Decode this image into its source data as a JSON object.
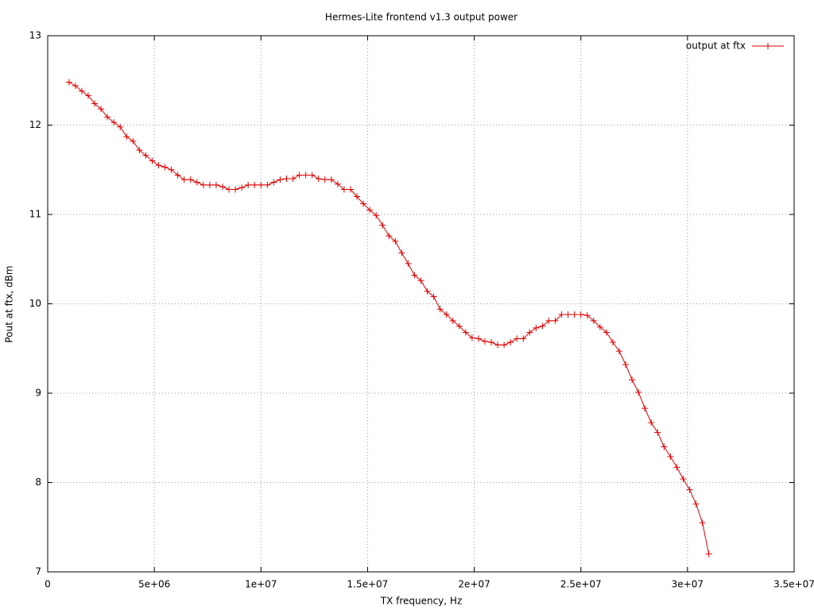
{
  "chart_data": {
    "type": "line",
    "title": "Hermes-Lite frontend v1.3 output power",
    "xlabel": "TX frequency, Hz",
    "ylabel": "Pout at ftx, dBm",
    "x": [
      1000000,
      1300000,
      1600000,
      1900000,
      2200000,
      2500000,
      2800000,
      3100000,
      3400000,
      3700000,
      4000000,
      4300000,
      4600000,
      4900000,
      5200000,
      5500000,
      5800000,
      6100000,
      6400000,
      6700000,
      7000000,
      7300000,
      7600000,
      7900000,
      8200000,
      8500000,
      8800000,
      9100000,
      9400000,
      9700000,
      10000000,
      10300000,
      10600000,
      10900000,
      11200000,
      11500000,
      11800000,
      12100000,
      12400000,
      12700000,
      13000000,
      13300000,
      13600000,
      13900000,
      14200000,
      14500000,
      14800000,
      15100000,
      15400000,
      15700000,
      16000000,
      16300000,
      16600000,
      16900000,
      17200000,
      17500000,
      17800000,
      18100000,
      18400000,
      18700000,
      19000000,
      19300000,
      19600000,
      19900000,
      20200000,
      20500000,
      20800000,
      21100000,
      21400000,
      21700000,
      22000000,
      22300000,
      22600000,
      22900000,
      23200000,
      23500000,
      23800000,
      24100000,
      24400000,
      24700000,
      25000000,
      25300000,
      25600000,
      25900000,
      26200000,
      26500000,
      26800000,
      27100000,
      27400000,
      27700000,
      28000000,
      28300000,
      28600000,
      28900000,
      29200000,
      29500000,
      29800000,
      30100000,
      30400000,
      30700000,
      31000000
    ],
    "series": [
      {
        "name": "output at ftx",
        "color": "#dd0000",
        "values": [
          12.48,
          12.44,
          12.38,
          12.33,
          12.24,
          12.18,
          12.09,
          12.03,
          11.98,
          11.87,
          11.82,
          11.72,
          11.66,
          11.6,
          11.55,
          11.53,
          11.5,
          11.44,
          11.39,
          11.39,
          11.36,
          11.33,
          11.33,
          11.33,
          11.31,
          11.28,
          11.28,
          11.3,
          11.33,
          11.33,
          11.33,
          11.33,
          11.36,
          11.39,
          11.4,
          11.4,
          11.44,
          11.44,
          11.44,
          11.4,
          11.39,
          11.39,
          11.34,
          11.28,
          11.28,
          11.2,
          11.12,
          11.05,
          10.99,
          10.88,
          10.76,
          10.7,
          10.57,
          10.45,
          10.32,
          10.26,
          10.14,
          10.08,
          9.94,
          9.88,
          9.81,
          9.75,
          9.68,
          9.62,
          9.61,
          9.58,
          9.57,
          9.54,
          9.54,
          9.57,
          9.61,
          9.61,
          9.68,
          9.73,
          9.75,
          9.81,
          9.81,
          9.88,
          9.88,
          9.88,
          9.88,
          9.87,
          9.81,
          9.74,
          9.68,
          9.57,
          9.47,
          9.32,
          9.15,
          9.01,
          8.83,
          8.67,
          8.56,
          8.4,
          8.29,
          8.17,
          8.04,
          7.92,
          7.76,
          7.55,
          7.2
        ]
      }
    ],
    "xlim": [
      0,
      35000000
    ],
    "xticks": [
      0,
      {
        "value": 5000000,
        "label": "5e+06"
      },
      {
        "value": 10000000,
        "label": "1e+07"
      },
      {
        "value": 15000000,
        "label": "1.5e+07"
      },
      {
        "value": 20000000,
        "label": "2e+07"
      },
      {
        "value": 25000000,
        "label": "2.5e+07"
      },
      {
        "value": 30000000,
        "label": "3e+07"
      },
      {
        "value": 35000000,
        "label": "3.5e+07"
      }
    ],
    "ylim": [
      7,
      13
    ],
    "yticks": [
      7,
      8,
      9,
      10,
      11,
      12,
      13
    ],
    "grid": true,
    "legend": "top-right"
  }
}
